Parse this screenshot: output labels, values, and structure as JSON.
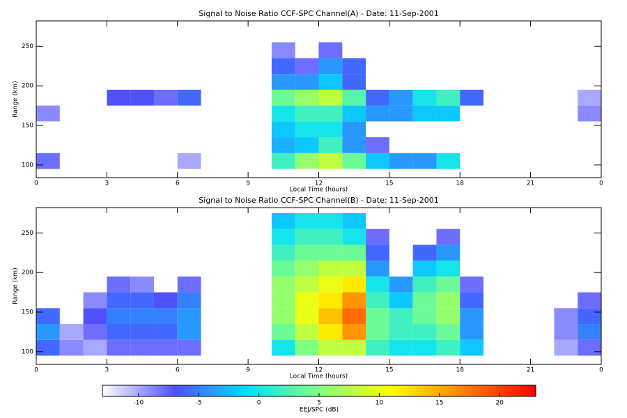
{
  "chart_data": [
    {
      "type": "heatmap",
      "title": "Signal to Noise Ratio CCF-SPC Channel(A) - Date: 11-Sep-2001",
      "xlabel": "Local Time (hours)",
      "ylabel": "Range (km)",
      "x": [
        0,
        1,
        2,
        3,
        4,
        5,
        6,
        7,
        8,
        9,
        10,
        11,
        12,
        13,
        14,
        15,
        16,
        17,
        18,
        19,
        20,
        21,
        22,
        23,
        24
      ],
      "y": [
        95,
        115,
        135,
        155,
        175,
        195,
        215,
        235,
        255,
        275
      ],
      "z": [
        [
          -8,
          null,
          null,
          null,
          null,
          null,
          -10,
          null,
          null,
          null,
          2,
          6,
          8,
          4,
          -2,
          -4,
          -4,
          0,
          null,
          null,
          null,
          null,
          null,
          null
        ],
        [
          null,
          null,
          null,
          null,
          null,
          null,
          null,
          null,
          null,
          null,
          -3,
          -2,
          2,
          -4,
          -8,
          null,
          null,
          null,
          null,
          null,
          null,
          null,
          null,
          null
        ],
        [
          null,
          null,
          null,
          null,
          null,
          null,
          null,
          null,
          null,
          null,
          -2,
          0,
          0,
          -4,
          null,
          null,
          null,
          null,
          null,
          null,
          null,
          null,
          null,
          null
        ],
        [
          -9,
          null,
          null,
          null,
          null,
          null,
          null,
          null,
          null,
          null,
          0,
          2,
          2,
          -2,
          -4,
          -4,
          -2,
          -2,
          null,
          null,
          null,
          null,
          null,
          -9
        ],
        [
          null,
          null,
          null,
          -7,
          -7,
          -8,
          -6,
          null,
          null,
          null,
          4,
          6,
          8,
          3,
          -6,
          -4,
          0,
          2,
          -6,
          null,
          null,
          null,
          null,
          -10
        ],
        [
          null,
          null,
          null,
          null,
          null,
          null,
          null,
          null,
          null,
          null,
          -4,
          -4,
          -2,
          -6,
          null,
          null,
          null,
          null,
          null,
          null,
          null,
          null,
          null,
          null
        ],
        [
          null,
          null,
          null,
          null,
          null,
          null,
          null,
          null,
          null,
          null,
          -6,
          -8,
          -4,
          -6,
          null,
          null,
          null,
          null,
          null,
          null,
          null,
          null,
          null,
          null
        ],
        [
          null,
          null,
          null,
          null,
          null,
          null,
          null,
          null,
          null,
          null,
          -9,
          null,
          -8,
          null,
          null,
          null,
          null,
          null,
          null,
          null,
          null,
          null,
          null,
          null
        ],
        [
          null,
          null,
          null,
          null,
          null,
          null,
          null,
          null,
          null,
          null,
          null,
          null,
          null,
          null,
          null,
          null,
          null,
          null,
          null,
          null,
          null,
          null,
          null,
          null
        ]
      ],
      "xlim": [
        0,
        24
      ],
      "ylim": [
        84,
        282
      ],
      "xticks": [
        0,
        3,
        6,
        9,
        12,
        15,
        18,
        21,
        {
          "value": 24,
          "label": "0"
        }
      ],
      "yticks": [
        100,
        150,
        200,
        250
      ]
    },
    {
      "type": "heatmap",
      "title": "Signal to Noise Ratio CCF-SPC Channel(B) - Date: 11-Sep-2001",
      "xlabel": "Local Time (hours)",
      "ylabel": "Range (km)",
      "x": [
        0,
        1,
        2,
        3,
        4,
        5,
        6,
        7,
        8,
        9,
        10,
        11,
        12,
        13,
        14,
        15,
        16,
        17,
        18,
        19,
        20,
        21,
        22,
        23,
        24
      ],
      "y": [
        95,
        115,
        135,
        155,
        175,
        195,
        215,
        235,
        255,
        275
      ],
      "z": [
        [
          -6,
          -9,
          -10,
          -8,
          -8,
          -8,
          -8,
          null,
          null,
          null,
          0,
          5,
          8,
          8,
          2,
          0,
          0,
          2,
          -2,
          null,
          null,
          null,
          -10,
          -8
        ],
        [
          -4,
          -10,
          -8,
          -6,
          -6,
          -6,
          -4,
          null,
          null,
          null,
          4,
          8,
          12,
          16,
          4,
          2,
          2,
          4,
          -4,
          null,
          null,
          null,
          -9,
          -5
        ],
        [
          -6,
          null,
          -7,
          -5,
          -5,
          -5,
          -4,
          null,
          null,
          null,
          6,
          10,
          14,
          18,
          4,
          2,
          4,
          6,
          -4,
          null,
          null,
          null,
          -9,
          -6
        ],
        [
          null,
          null,
          -9,
          -6,
          -6,
          -7,
          -5,
          null,
          null,
          null,
          6,
          10,
          12,
          16,
          2,
          -2,
          4,
          6,
          -6,
          null,
          null,
          null,
          null,
          -8
        ],
        [
          null,
          null,
          null,
          -8,
          -9,
          null,
          -8,
          null,
          null,
          null,
          6,
          8,
          10,
          12,
          0,
          -4,
          2,
          4,
          -8,
          null,
          null,
          null,
          null,
          null
        ],
        [
          null,
          null,
          null,
          null,
          null,
          null,
          null,
          null,
          null,
          null,
          4,
          6,
          8,
          8,
          -4,
          null,
          -2,
          0,
          null,
          null,
          null,
          null,
          null,
          null
        ],
        [
          null,
          null,
          null,
          null,
          null,
          null,
          null,
          null,
          null,
          null,
          2,
          4,
          4,
          4,
          -6,
          null,
          -6,
          -4,
          null,
          null,
          null,
          null,
          null,
          null
        ],
        [
          null,
          null,
          null,
          null,
          null,
          null,
          null,
          null,
          null,
          null,
          0,
          2,
          2,
          0,
          -8,
          null,
          null,
          -8,
          null,
          null,
          null,
          null,
          null,
          null
        ],
        [
          null,
          null,
          null,
          null,
          null,
          null,
          null,
          null,
          null,
          null,
          -2,
          0,
          0,
          -2,
          null,
          null,
          null,
          null,
          null,
          null,
          null,
          null,
          null,
          null
        ]
      ],
      "xlim": [
        0,
        24
      ],
      "ylim": [
        84,
        282
      ],
      "xticks": [
        0,
        3,
        6,
        9,
        12,
        15,
        18,
        21,
        {
          "value": 24,
          "label": "0"
        }
      ],
      "yticks": [
        100,
        150,
        200,
        250
      ]
    }
  ],
  "colorbar": {
    "label": "EEJ/SPC (dB)",
    "zlim": [
      -13,
      23
    ],
    "zticks": [
      -10,
      -5,
      0,
      5,
      10,
      15,
      20
    ],
    "colormap": [
      "#ffffff",
      "#5050ff",
      "#00e0ff",
      "#80ff80",
      "#ffff00",
      "#ff8000",
      "#ff0000"
    ]
  }
}
